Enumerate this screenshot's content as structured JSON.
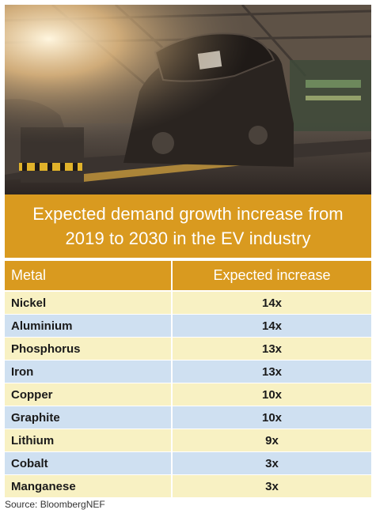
{
  "title": "Expected demand growth increase from 2019 to 2030 in the EV industry",
  "table": {
    "headers": [
      "Metal",
      "Expected increase"
    ],
    "rows": [
      {
        "metal": "Nickel",
        "increase": "14x"
      },
      {
        "metal": "Aluminium",
        "increase": "14x"
      },
      {
        "metal": "Phosphorus",
        "increase": "13x"
      },
      {
        "metal": "Iron",
        "increase": "13x"
      },
      {
        "metal": "Copper",
        "increase": "10x"
      },
      {
        "metal": "Graphite",
        "increase": "10x"
      },
      {
        "metal": "Lithium",
        "increase": "9x"
      },
      {
        "metal": "Cobalt",
        "increase": "3x"
      },
      {
        "metal": "Manganese",
        "increase": "3x"
      }
    ]
  },
  "source": "Source: BloombergNEF",
  "colors": {
    "accent": "#d99a1f",
    "row_light_yellow": "#f8f1c3",
    "row_light_blue": "#cfe0f1"
  },
  "image": {
    "subject": "car-assembly-line-photo"
  }
}
